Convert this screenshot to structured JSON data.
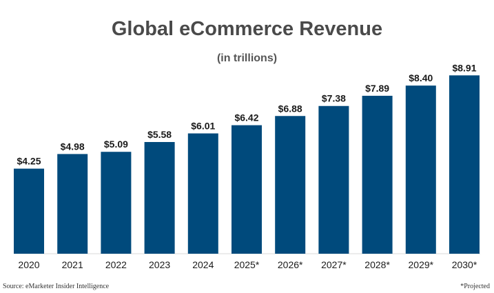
{
  "chart_data": {
    "type": "bar",
    "title": "Global eCommerce Revenue",
    "subtitle": "(in trillions)",
    "categories": [
      "2020",
      "2021",
      "2022",
      "2023",
      "2024",
      "2025*",
      "2026*",
      "2027*",
      "2028*",
      "2029*",
      "2030*"
    ],
    "values": [
      4.25,
      4.98,
      5.09,
      5.58,
      6.01,
      6.42,
      6.88,
      7.38,
      7.89,
      8.4,
      8.91
    ],
    "value_labels": [
      "$4.25",
      "$4.98",
      "$5.09",
      "$5.58",
      "$6.01",
      "$6.42",
      "$6.88",
      "$7.38",
      "$7.89",
      "$8.40",
      "$8.91"
    ],
    "xlabel": "",
    "ylabel": "",
    "ylim": [
      0,
      9.3
    ],
    "grid": false,
    "bar_color": "#004a7c"
  },
  "footer": {
    "source": "Source: eMarketer Insider Intelligence",
    "note": "*Projected"
  }
}
